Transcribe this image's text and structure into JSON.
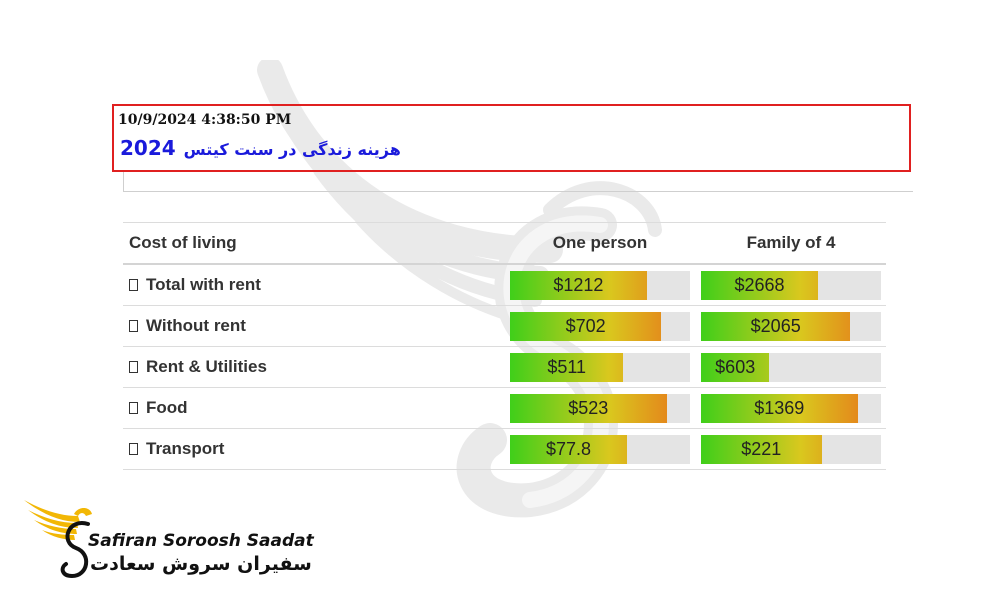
{
  "header": {
    "timestamp": "10/9/2024 4:38:50 PM",
    "title_year": "2024",
    "title_fa": "هزینه زندگی در سنت کیتس"
  },
  "table": {
    "columns": [
      "Cost of living",
      "One person",
      "Family of 4"
    ],
    "rows": [
      {
        "label": "Total with rent",
        "one": {
          "text": "$1212",
          "fill": 0.76
        },
        "family": {
          "text": "$2668",
          "fill": 0.65
        }
      },
      {
        "label": "Without rent",
        "one": {
          "text": "$702",
          "fill": 0.84
        },
        "family": {
          "text": "$2065",
          "fill": 0.83
        }
      },
      {
        "label": "Rent & Utilities",
        "one": {
          "text": "$511",
          "fill": 0.63
        },
        "family": {
          "text": "$603",
          "fill": 0.38
        }
      },
      {
        "label": "Food",
        "one": {
          "text": "$523",
          "fill": 0.87
        },
        "family": {
          "text": "$1369",
          "fill": 0.87
        }
      },
      {
        "label": "Transport",
        "one": {
          "text": "$77.8",
          "fill": 0.65
        },
        "family": {
          "text": "$221",
          "fill": 0.67
        }
      }
    ]
  },
  "brand": {
    "name_en": "Safiran Soroosh Saadat",
    "name_fa": "سفیران سروش سعادت"
  },
  "colors": {
    "header_border": "#e02020",
    "title": "#1a1adb",
    "bar_track": "#e4e4e4",
    "gradient_start": "#3fcf1a",
    "gradient_mid": "#d9c81e",
    "gradient_end": "#e8701a",
    "logo_gold": "#f2b705"
  },
  "icons": {
    "row_glyph": "missing-glyph-icon",
    "logo": "winged-s-logo-icon",
    "watermark": "winged-s-watermark-icon"
  }
}
